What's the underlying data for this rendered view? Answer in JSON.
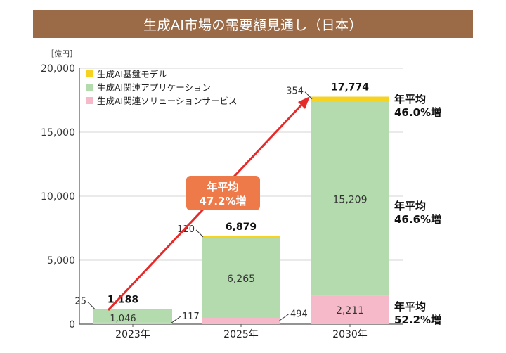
{
  "title": "生成AI市場の需要額見通し（日本）",
  "unit_label": "［億円］",
  "colors": {
    "title_bg": "#9b6a47",
    "foundation": "#f6d221",
    "application": "#b3dbad",
    "service": "#f5b9c9",
    "arrow": "#e62a2a",
    "arrow_label_bg": "#ee7a4a"
  },
  "chart_data": {
    "type": "bar",
    "stacked": true,
    "categories": [
      "2023年",
      "2025年",
      "2030年"
    ],
    "ylim": [
      0,
      20000
    ],
    "yticks": [
      "0",
      "5,000",
      "10,000",
      "15,000",
      "20,000"
    ],
    "ytick_values": [
      0,
      5000,
      10000,
      15000,
      20000
    ],
    "grid": true,
    "legend_position": "top-left",
    "series": [
      {
        "name": "生成AI関連ソリューションサービス",
        "color_key": "service",
        "values": [
          117,
          494,
          2211
        ],
        "labels": [
          "117",
          "494",
          "2,211"
        ]
      },
      {
        "name": "生成AI関連アプリケーション",
        "color_key": "application",
        "values": [
          1046,
          6265,
          15209
        ],
        "labels": [
          "1,046",
          "6,265",
          "15,209"
        ]
      },
      {
        "name": "生成AI基盤モデル",
        "color_key": "foundation",
        "values": [
          25,
          120,
          354
        ],
        "labels": [
          "25",
          "120",
          "354"
        ]
      }
    ],
    "legend_order": [
      "生成AI基盤モデル",
      "生成AI関連アプリケーション",
      "生成AI関連ソリューションサービス"
    ],
    "totals": [
      "1,188",
      "6,879",
      "17,774"
    ],
    "growth_arrow": {
      "line1": "年平均",
      "line2": "47.2%増"
    },
    "growth_annotations": [
      {
        "series": "生成AI基盤モデル",
        "line1": "年平均",
        "line2": "46.0%増"
      },
      {
        "series": "生成AI関連アプリケーション",
        "line1": "年平均",
        "line2": "46.6%増"
      },
      {
        "series": "生成AI関連ソリューションサービス",
        "line1": "年平均",
        "line2": "52.2%増"
      }
    ]
  }
}
